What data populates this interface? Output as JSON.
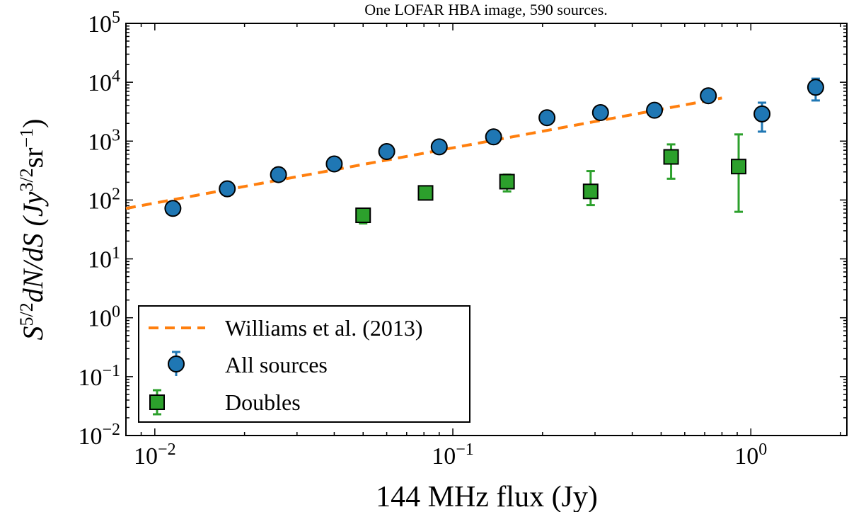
{
  "chart_data": {
    "type": "scatter",
    "title": "One LOFAR HBA image, 590 sources.",
    "xlabel": "144 MHz flux (Jy)",
    "ylabel_main": "S",
    "ylabel_sup": "5/2",
    "ylabel_rest": "dN/dS (Jy",
    "ylabel_sup2": "3/2",
    "ylabel_unit": "sr",
    "ylabel_sup3": "−1",
    "ylabel_close": ")",
    "xscale": "log",
    "yscale": "log",
    "xlim": [
      0.008,
      2.1
    ],
    "ylim": [
      0.01,
      100000
    ],
    "xticks": [
      {
        "value": 0.01,
        "base": "10",
        "exp": "−2"
      },
      {
        "value": 0.1,
        "base": "10",
        "exp": "−1"
      },
      {
        "value": 1,
        "base": "10",
        "exp": "0"
      }
    ],
    "yticks": [
      {
        "value": 0.01,
        "base": "10",
        "exp": "−2"
      },
      {
        "value": 0.1,
        "base": "10",
        "exp": "−1"
      },
      {
        "value": 1,
        "base": "10",
        "exp": "0"
      },
      {
        "value": 10,
        "base": "10",
        "exp": "1"
      },
      {
        "value": 100,
        "base": "10",
        "exp": "2"
      },
      {
        "value": 1000,
        "base": "10",
        "exp": "3"
      },
      {
        "value": 10000,
        "base": "10",
        "exp": "4"
      },
      {
        "value": 100000,
        "base": "10",
        "exp": "5"
      }
    ],
    "grid": false,
    "legend_position": "lower-left",
    "series": [
      {
        "name": "Williams et al. (2013)",
        "kind": "dashed-line",
        "color": "#ff7f0e",
        "x": [
          0.008,
          0.8
        ],
        "y": [
          72,
          5400
        ]
      },
      {
        "name": "All sources",
        "kind": "circle-markers",
        "color": "#1f77b4",
        "points": [
          {
            "x": 0.0115,
            "y": 72,
            "lo": 66,
            "hi": 78
          },
          {
            "x": 0.0175,
            "y": 155,
            "lo": 145,
            "hi": 166
          },
          {
            "x": 0.026,
            "y": 270,
            "lo": 255,
            "hi": 286
          },
          {
            "x": 0.04,
            "y": 410,
            "lo": 390,
            "hi": 432
          },
          {
            "x": 0.06,
            "y": 665,
            "lo": 630,
            "hi": 700
          },
          {
            "x": 0.09,
            "y": 800,
            "lo": 750,
            "hi": 850
          },
          {
            "x": 0.137,
            "y": 1180,
            "lo": 1100,
            "hi": 1260
          },
          {
            "x": 0.207,
            "y": 2500,
            "lo": 2300,
            "hi": 2700
          },
          {
            "x": 0.313,
            "y": 3050,
            "lo": 2750,
            "hi": 3350
          },
          {
            "x": 0.475,
            "y": 3350,
            "lo": 2850,
            "hi": 3900
          },
          {
            "x": 0.72,
            "y": 5900,
            "lo": 5000,
            "hi": 6900
          },
          {
            "x": 1.09,
            "y": 2900,
            "lo": 1450,
            "hi": 4500
          },
          {
            "x": 1.65,
            "y": 8200,
            "lo": 4900,
            "hi": 11500
          }
        ]
      },
      {
        "name": "Doubles",
        "kind": "square-markers",
        "color": "#2ca02c",
        "points": [
          {
            "x": 0.05,
            "y": 55,
            "lo": 40,
            "hi": 70
          },
          {
            "x": 0.081,
            "y": 132,
            "lo": 115,
            "hi": 150
          },
          {
            "x": 0.152,
            "y": 205,
            "lo": 140,
            "hi": 270
          },
          {
            "x": 0.29,
            "y": 140,
            "lo": 82,
            "hi": 310
          },
          {
            "x": 0.54,
            "y": 540,
            "lo": 230,
            "hi": 880
          },
          {
            "x": 0.91,
            "y": 370,
            "lo": 63,
            "hi": 1300
          }
        ]
      }
    ]
  }
}
